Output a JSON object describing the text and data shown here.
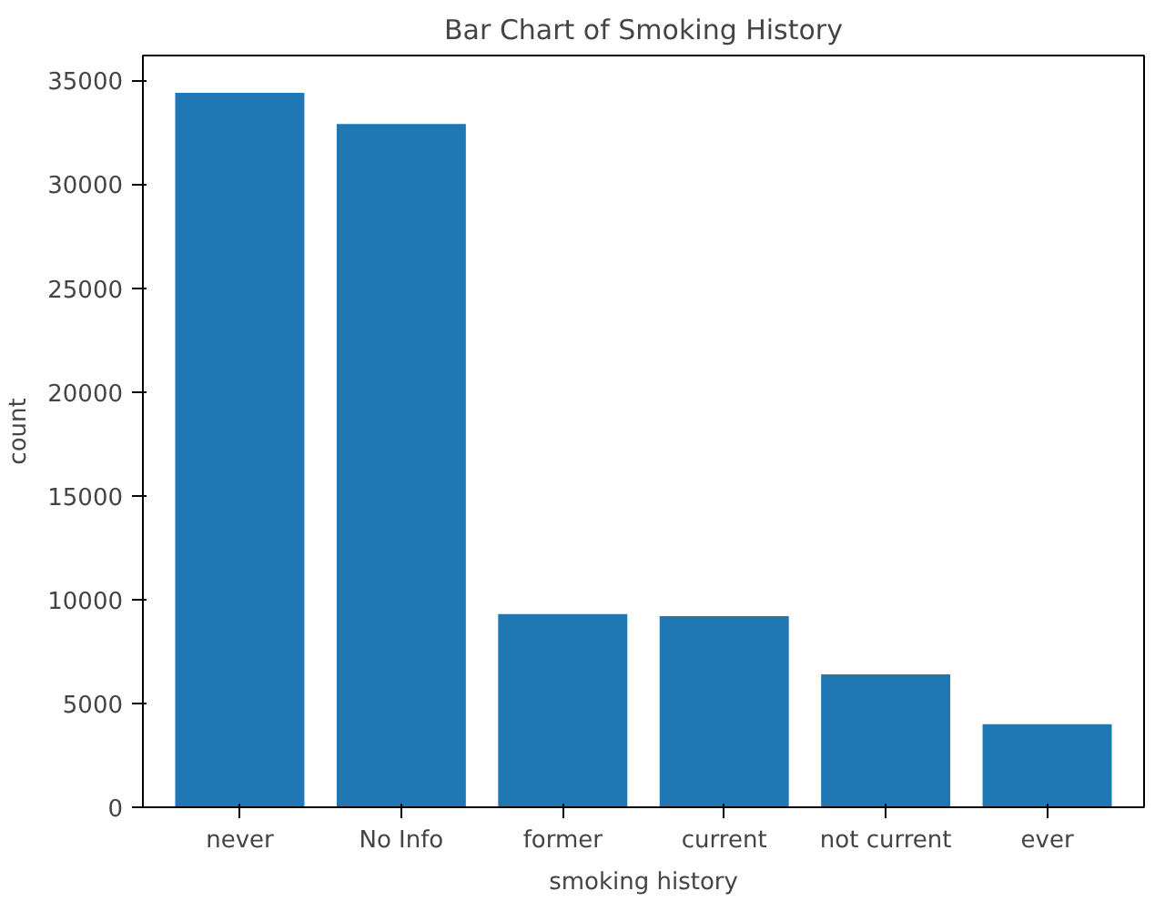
{
  "chart_data": {
    "type": "bar",
    "title": "Bar Chart of Smoking History",
    "xlabel": "smoking history",
    "ylabel": "count",
    "categories": [
      "never",
      "No Info",
      "former",
      "current",
      "not current",
      "ever"
    ],
    "values": [
      34400,
      32900,
      9300,
      9200,
      6400,
      4000
    ],
    "color": "#1f77b4",
    "ylim": [
      0,
      36200
    ],
    "yticks": [
      0,
      5000,
      10000,
      15000,
      20000,
      25000,
      30000,
      35000
    ],
    "grid": false
  }
}
